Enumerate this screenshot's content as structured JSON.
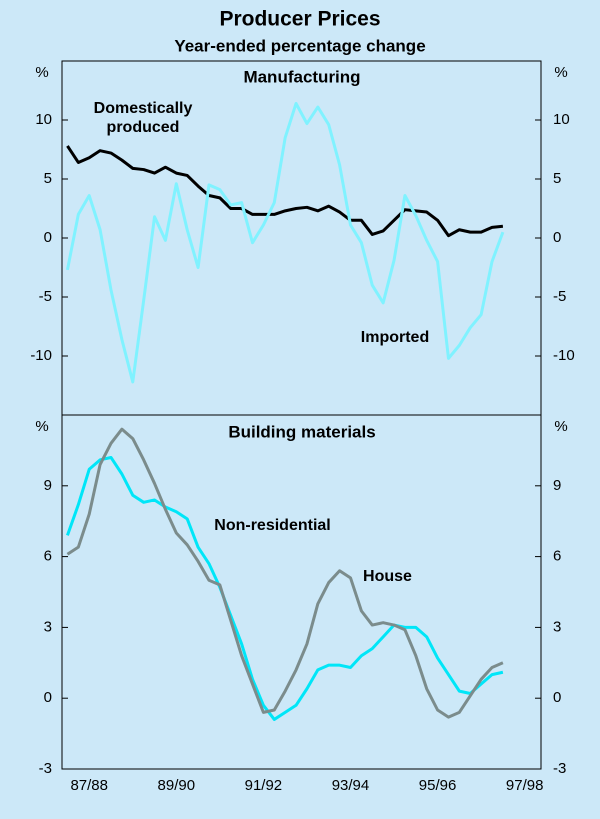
{
  "title": "Producer Prices",
  "subtitle": "Year-ended percentage change",
  "chart_data": {
    "type": "line",
    "categories": [
      null,
      null,
      "87/88",
      null,
      null,
      null,
      null,
      null,
      null,
      null,
      "89/90",
      null,
      null,
      null,
      null,
      null,
      null,
      null,
      "91/92",
      null,
      null,
      null,
      null,
      null,
      null,
      null,
      "93/94",
      null,
      null,
      null,
      null,
      null,
      null,
      null,
      "95/96",
      null,
      null,
      null,
      null,
      null,
      null,
      null,
      "97/98",
      null
    ],
    "panels": [
      {
        "title": "Manufacturing",
        "y_unit": "%",
        "ylim": [
          -15,
          15
        ],
        "yticks": [
          -10,
          -5,
          0,
          5,
          10
        ],
        "series": [
          {
            "name": "Domestically produced",
            "color": "#000000",
            "values": [
              7.8,
              6.4,
              6.8,
              7.4,
              7.2,
              6.6,
              5.9,
              5.8,
              5.5,
              6.0,
              5.5,
              5.3,
              4.4,
              3.6,
              3.4,
              2.5,
              2.5,
              2.0,
              2.0,
              2.0,
              2.3,
              2.5,
              2.6,
              2.3,
              2.7,
              2.2,
              1.5,
              1.5,
              0.3,
              0.6,
              1.5,
              2.4,
              2.3,
              2.2,
              1.5,
              0.2,
              0.7,
              0.5,
              0.5,
              0.9,
              1.0,
              null,
              null,
              null
            ]
          },
          {
            "name": "Imported",
            "color": "#80f2ff",
            "values": [
              -2.7,
              2.0,
              3.6,
              0.7,
              -4.4,
              -8.6,
              -12.2,
              -5.3,
              1.8,
              -0.2,
              4.6,
              0.7,
              -2.5,
              4.5,
              4.1,
              2.8,
              3.0,
              -0.4,
              1.1,
              3.0,
              8.5,
              11.4,
              9.7,
              11.1,
              9.6,
              6.2,
              1.1,
              -0.4,
              -4.0,
              -5.5,
              -1.9,
              3.6,
              1.9,
              -0.2,
              -2.0,
              -10.2,
              -9.1,
              -7.6,
              -6.5,
              -2.0,
              0.5,
              null,
              null,
              null
            ]
          }
        ]
      },
      {
        "title": "Building materials",
        "y_unit": "%",
        "ylim": [
          -3,
          12
        ],
        "yticks": [
          -3,
          0,
          3,
          6,
          9
        ],
        "series": [
          {
            "name": "Non-residential",
            "color": "#00e6f8",
            "values": [
              6.9,
              8.2,
              9.7,
              10.1,
              10.2,
              9.5,
              8.6,
              8.3,
              8.4,
              8.1,
              7.9,
              7.6,
              6.4,
              5.7,
              4.7,
              3.5,
              2.3,
              0.8,
              -0.3,
              -0.9,
              -0.6,
              -0.3,
              0.4,
              1.2,
              1.4,
              1.4,
              1.3,
              1.8,
              2.1,
              2.6,
              3.1,
              3.0,
              3.0,
              2.6,
              1.7,
              1.0,
              0.3,
              0.2,
              0.6,
              1.0,
              1.1,
              null,
              null,
              null
            ]
          },
          {
            "name": "House",
            "color": "#7b8c8c",
            "values": [
              6.1,
              6.4,
              7.8,
              9.9,
              10.8,
              11.4,
              11.0,
              10.1,
              9.1,
              8.0,
              7.0,
              6.5,
              5.8,
              5.0,
              4.8,
              3.3,
              1.8,
              0.6,
              -0.6,
              -0.5,
              0.3,
              1.2,
              2.3,
              4.0,
              4.9,
              5.4,
              5.1,
              3.7,
              3.1,
              3.2,
              3.1,
              2.9,
              1.8,
              0.4,
              -0.5,
              -0.8,
              -0.6,
              0.1,
              0.8,
              1.3,
              1.5,
              null,
              null,
              null
            ]
          }
        ]
      }
    ]
  }
}
